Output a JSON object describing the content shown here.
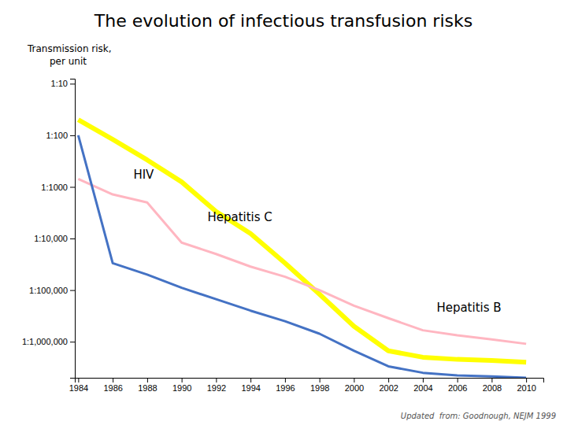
{
  "chart_data": {
    "type": "line",
    "title": "The evolution of infectious transfusion risks",
    "ylabel": [
      "Transmission risk,",
      "per unit"
    ],
    "footnote": "Updated  from: Goodnough, NEJM 1999",
    "log": "y",
    "grid": false,
    "x": [
      1984,
      1986,
      1988,
      1990,
      1992,
      1994,
      1996,
      1998,
      2000,
      2002,
      2004,
      2006,
      2008,
      2010
    ],
    "series": [
      {
        "color": "#FFFF00",
        "values": [
          50,
          120,
          300,
          800,
          3000,
          8000,
          30000,
          120000,
          500000,
          1500000,
          2000000,
          2200000,
          2300000,
          2500000
        ]
      },
      {
        "color": "#FFB6C1",
        "values": [
          700,
          1400,
          2000,
          12000,
          20000,
          35000,
          55000,
          100000,
          200000,
          350000,
          600000,
          750000,
          900000,
          1100000
        ]
      },
      {
        "color": "#4472C4",
        "values": [
          100,
          30000,
          50000,
          90000,
          150000,
          250000,
          400000,
          700000,
          1500000,
          3000000,
          4000000,
          4500000,
          4700000,
          5000000
        ]
      }
    ],
    "xlim": [
      1983.8,
      2011
    ],
    "xticks": [
      1984,
      1986,
      1988,
      1990,
      1992,
      1994,
      1996,
      1998,
      2000,
      2002,
      2004,
      2006,
      2008,
      2010
    ],
    "ylim": [
      5000000,
      8
    ],
    "yticks": [
      {
        "value": 10,
        "label": "1:10"
      },
      {
        "value": 100,
        "label": "1:100"
      },
      {
        "value": 1000,
        "label": "1:1000"
      },
      {
        "value": 10000,
        "label": "1:10,000"
      },
      {
        "value": 100000,
        "label": "1:100,000"
      },
      {
        "value": 1000000,
        "label": "1:1,000,000"
      }
    ],
    "annotations": [
      {
        "text": "HIV",
        "x": 1987.2,
        "y": 600
      },
      {
        "text": "Hepatitis C",
        "x": 1991.5,
        "y": 4000
      },
      {
        "text": "Hepatitis B",
        "x": 2004.8,
        "y": 220000
      }
    ]
  }
}
